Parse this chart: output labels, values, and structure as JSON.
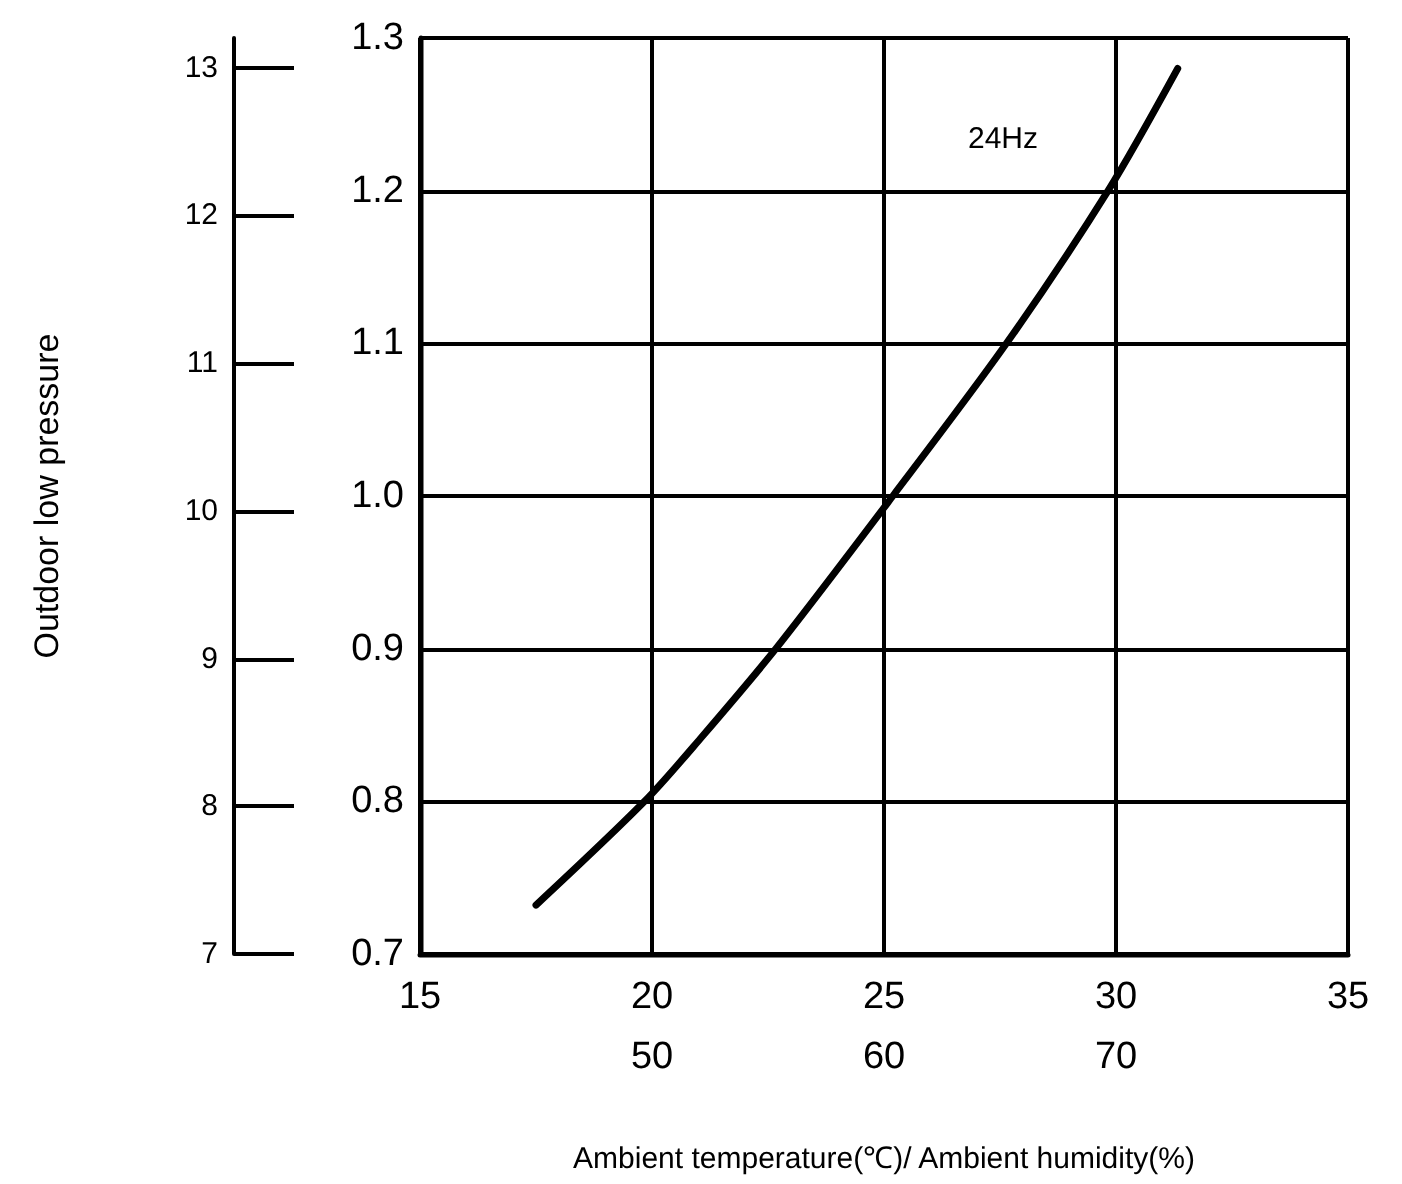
{
  "chart_data": {
    "type": "line",
    "xlabel": "Ambient temperature(℃)/ Ambient humidity(%)",
    "y2label": "Outdoor low pressure",
    "x": [
      17.5,
      19.84,
      21.04,
      22.67,
      25.19,
      27.64,
      29.83,
      31.33
    ],
    "series": [
      {
        "color": "#000000",
        "values": [
          0.732,
          0.8,
          0.841,
          0.9,
          1.0,
          1.1,
          1.2,
          1.28
        ]
      }
    ],
    "xlim": [
      15,
      35
    ],
    "xticks": [
      15,
      20,
      25,
      30,
      35
    ],
    "x2lim": [
      40,
      80
    ],
    "x2ticks": [
      50,
      60,
      70
    ],
    "ylim": [
      0.7,
      1.3
    ],
    "yticks": [
      0.7,
      0.8,
      0.9,
      {
        "value": 1,
        "label": "1.0"
      },
      1.1,
      1.2,
      1.3
    ],
    "y2lim": [
      7,
      13.2
    ],
    "y2ticks": [
      7,
      8,
      9,
      10,
      11,
      12,
      13
    ],
    "annotations": [
      "24Hz"
    ],
    "grid": true,
    "marker": "none",
    "line_style": "solid"
  }
}
